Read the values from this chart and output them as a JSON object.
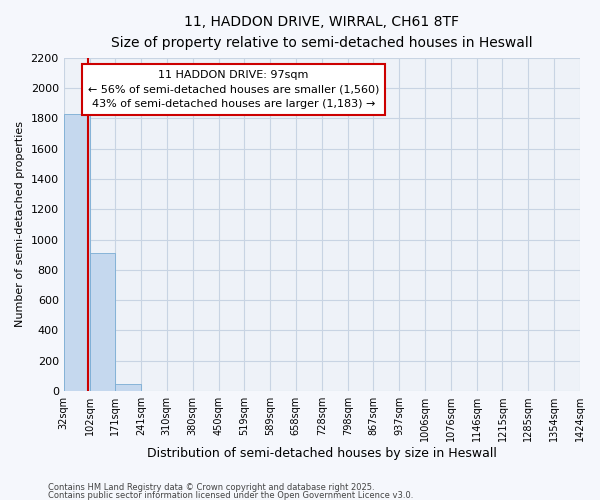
{
  "title": "11, HADDON DRIVE, WIRRAL, CH61 8TF",
  "subtitle": "Size of property relative to semi-detached houses in Heswall",
  "xlabel": "Distribution of semi-detached houses by size in Heswall",
  "ylabel": "Number of semi-detached properties",
  "property_size": 97,
  "property_label": "11 HADDON DRIVE: 97sqm",
  "pct_smaller": "← 56% of semi-detached houses are smaller (1,560)",
  "pct_larger": "43% of semi-detached houses are larger (1,183) →",
  "bin_edges": [
    32,
    102,
    171,
    241,
    310,
    380,
    450,
    519,
    589,
    658,
    728,
    798,
    867,
    937,
    1006,
    1076,
    1146,
    1215,
    1285,
    1354,
    1424
  ],
  "bin_labels": [
    "32sqm",
    "102sqm",
    "171sqm",
    "241sqm",
    "310sqm",
    "380sqm",
    "450sqm",
    "519sqm",
    "589sqm",
    "658sqm",
    "728sqm",
    "798sqm",
    "867sqm",
    "937sqm",
    "1006sqm",
    "1076sqm",
    "1146sqm",
    "1215sqm",
    "1285sqm",
    "1354sqm",
    "1424sqm"
  ],
  "bar_heights": [
    1830,
    910,
    50,
    0,
    0,
    0,
    0,
    0,
    0,
    0,
    0,
    0,
    0,
    0,
    0,
    0,
    0,
    0,
    0,
    0
  ],
  "bar_color": "#c5d8ee",
  "bar_edge_color": "#7aadd4",
  "grid_color": "#c8d4e3",
  "plot_bg_color": "#eef2f8",
  "fig_bg_color": "#f5f7fc",
  "annotation_box_color": "#ffffff",
  "annotation_box_edge": "#cc0000",
  "red_line_color": "#cc0000",
  "ylim": [
    0,
    2200
  ],
  "yticks": [
    0,
    200,
    400,
    600,
    800,
    1000,
    1200,
    1400,
    1600,
    1800,
    2000,
    2200
  ],
  "footnote1": "Contains HM Land Registry data © Crown copyright and database right 2025.",
  "footnote2": "Contains public sector information licensed under the Open Government Licence v3.0."
}
